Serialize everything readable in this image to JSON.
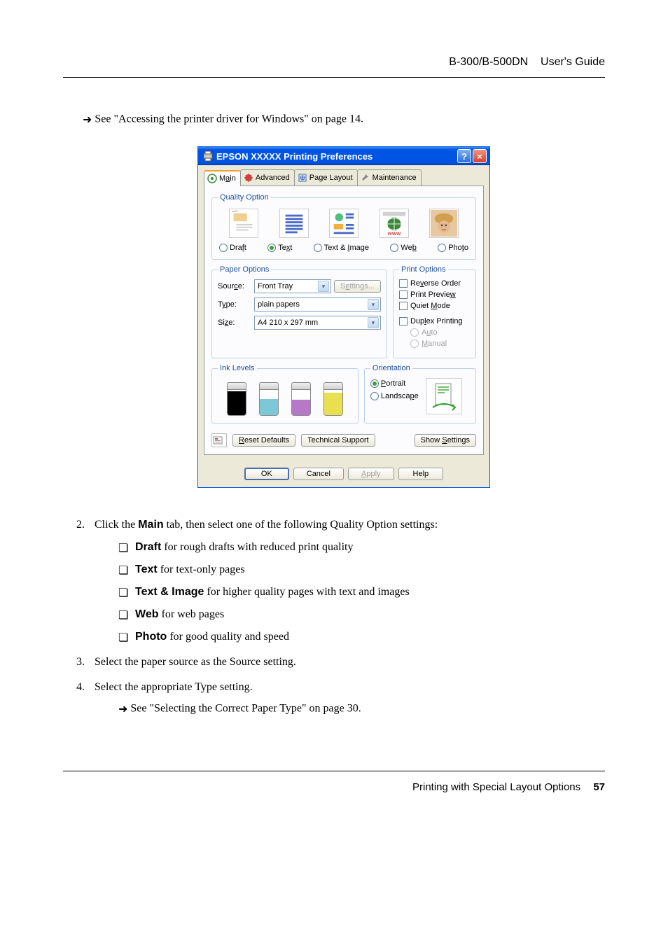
{
  "header": {
    "model": "B-300/B-500DN",
    "guide": "User's Guide"
  },
  "ref1_text": " See \"Accessing the printer driver for Windows\" on page 14.",
  "dialog": {
    "title": "EPSON  XXXXX  Printing Preferences",
    "tabs": {
      "main": {
        "label_pre": "M",
        "label_u": "a",
        "label_post": "in"
      },
      "advanced": "Advanced",
      "pagelayout": "Page Layout",
      "maintenance": "Maintenance"
    },
    "quality": {
      "legend": "Quality Option",
      "options": {
        "draft": {
          "pre": "Dra",
          "u": "f",
          "post": "t"
        },
        "text": {
          "pre": "Te",
          "u": "x",
          "post": "t"
        },
        "textimage": {
          "pre": "Text & ",
          "u": "I",
          "post": "mage"
        },
        "web": {
          "pre": "We",
          "u": "b",
          "post": ""
        },
        "photo": {
          "pre": "Pho",
          "u": "t",
          "post": "o"
        }
      },
      "selected": "text"
    },
    "paper": {
      "legend": "Paper Options",
      "source_label": {
        "pre": "Sour",
        "u": "c",
        "post": "e:"
      },
      "source_value": "Front Tray",
      "settings_btn": {
        "pre": "S",
        "u": "e",
        "post": "ttings..."
      },
      "type_label": {
        "pre": "T",
        "u": "y",
        "post": "pe:"
      },
      "type_value": "plain papers",
      "size_label": {
        "pre": "Si",
        "u": "z",
        "post": "e:"
      },
      "size_value": "A4 210 x 297 mm"
    },
    "print_options": {
      "legend": "Print Options",
      "reverse": {
        "pre": "Re",
        "u": "v",
        "post": "erse Order"
      },
      "preview": {
        "pre": "Print Previe",
        "u": "w",
        "post": ""
      },
      "quiet": {
        "pre": "Quiet ",
        "u": "M",
        "post": "ode"
      },
      "duplex": {
        "pre": "Dup",
        "u": "l",
        "post": "ex Printing"
      },
      "auto": {
        "pre": "A",
        "u": "u",
        "post": "to"
      },
      "manual": {
        "pre": "",
        "u": "M",
        "post": "anual"
      }
    },
    "ink": {
      "legend": "Ink Levels",
      "cartridges": [
        {
          "color": "#000000",
          "level": 0.95
        },
        {
          "color": "#7cc8d8",
          "level": 0.65
        },
        {
          "color": "#b878c8",
          "level": 0.6
        },
        {
          "color": "#e8e050",
          "level": 0.9
        }
      ]
    },
    "orientation": {
      "legend": "Orientation",
      "portrait": {
        "pre": "",
        "u": "P",
        "post": "ortrait"
      },
      "landscape": {
        "pre": "Landsca",
        "u": "p",
        "post": "e"
      }
    },
    "reset_btn": {
      "pre": "",
      "u": "R",
      "post": "eset Defaults"
    },
    "tech_btn": "Technical Support",
    "show_btn": {
      "pre": "Show ",
      "u": "S",
      "post": "ettings"
    },
    "ok": "OK",
    "cancel": "Cancel",
    "apply": {
      "pre": "",
      "u": "A",
      "post": "pply"
    },
    "help": "Help"
  },
  "step2": {
    "pre": "Click the ",
    "bold": "Main",
    "post": " tab, then select one of the following Quality Option settings:"
  },
  "bullets": {
    "draft": {
      "bold": "Draft",
      "post": " for rough drafts with reduced print quality"
    },
    "text": {
      "bold": "Text",
      "post": " for text-only pages"
    },
    "textimage": {
      "bold": "Text & Image",
      "post": " for higher quality pages with text and images"
    },
    "web": {
      "bold": "Web",
      "post": " for web pages"
    },
    "photo": {
      "bold": "Photo",
      "post": " for good quality and speed"
    }
  },
  "step3": "Select the paper source as the Source setting.",
  "step4": "Select the appropriate Type setting.",
  "ref2_text": " See \"Selecting the Correct Paper Type\" on page 30.",
  "footer": {
    "section": "Printing with Special Layout Options",
    "page": "57"
  },
  "colors": {
    "link_blue": "#1a4f9c"
  }
}
